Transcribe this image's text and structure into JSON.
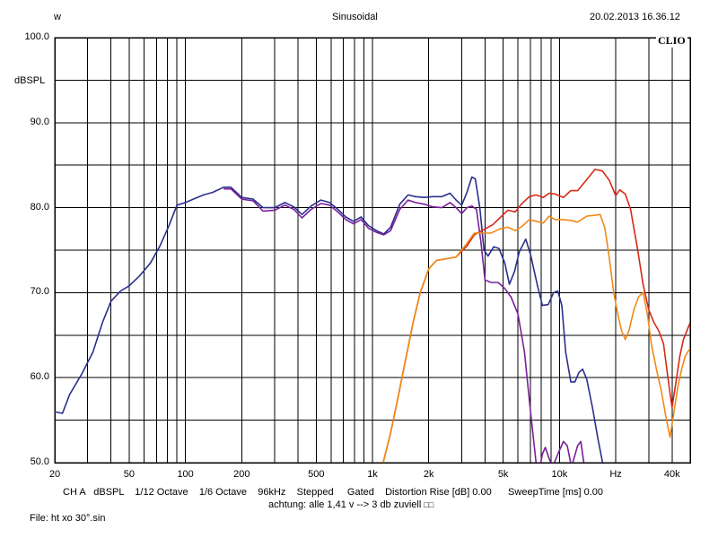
{
  "header": {
    "left": "w",
    "center": "Sinusoidal",
    "right": "20.02.2013 16.36.12"
  },
  "brand": "CLIO",
  "footer": {
    "line1": "CH A   dBSPL    1/12 Octave    1/6 Octave    96kHz    Stepped     Gated    Distortion Rise [dB] 0.00      SweepTime [ms] 0.00",
    "line2": "achtung:  alle 1,41 v --> 3 db zuviell",
    "file": "File: ht xo 30°.sin"
  },
  "chart_data": {
    "type": "line",
    "title": "Sinusoidal",
    "xlabel": "Hz",
    "ylabel": "dBSPL",
    "xscale": "log",
    "xlim": [
      20,
      50000
    ],
    "ylim": [
      50,
      100
    ],
    "grid": true,
    "xticks": [
      {
        "v": 20,
        "label": "20"
      },
      {
        "v": 50,
        "label": "50"
      },
      {
        "v": 100,
        "label": "100"
      },
      {
        "v": 200,
        "label": "200"
      },
      {
        "v": 500,
        "label": "500"
      },
      {
        "v": 1000,
        "label": "1k"
      },
      {
        "v": 2000,
        "label": "2k"
      },
      {
        "v": 5000,
        "label": "5k"
      },
      {
        "v": 10000,
        "label": "10k"
      },
      {
        "v": 20000,
        "label": "Hz"
      },
      {
        "v": 40000,
        "label": "40k"
      }
    ],
    "yticks": [
      {
        "v": 100,
        "label": "100.0"
      },
      {
        "v": 90,
        "label": "90.0"
      },
      {
        "v": 80,
        "label": "80.0"
      },
      {
        "v": 70,
        "label": "70.0"
      },
      {
        "v": 60,
        "label": "60.0"
      },
      {
        "v": 50,
        "label": "50.0"
      }
    ],
    "series": [
      {
        "color": "#2b2f8c",
        "points": [
          [
            20,
            56
          ],
          [
            22,
            55.8
          ],
          [
            24,
            58
          ],
          [
            28,
            60.5
          ],
          [
            32,
            63
          ],
          [
            36,
            66.5
          ],
          [
            40,
            69
          ],
          [
            45,
            70.2
          ],
          [
            50,
            70.8
          ],
          [
            57,
            72
          ],
          [
            65,
            73.5
          ],
          [
            73,
            75.5
          ],
          [
            82,
            78
          ],
          [
            90,
            80.3
          ],
          [
            100,
            80.6
          ],
          [
            110,
            81
          ],
          [
            125,
            81.5
          ],
          [
            140,
            81.8
          ],
          [
            160,
            82.4
          ],
          [
            175,
            82.4
          ],
          [
            200,
            81.2
          ],
          [
            230,
            81
          ],
          [
            260,
            80
          ],
          [
            300,
            80
          ],
          [
            340,
            80.6
          ],
          [
            380,
            80.1
          ],
          [
            420,
            79.2
          ],
          [
            470,
            80.2
          ],
          [
            530,
            80.9
          ],
          [
            590,
            80.6
          ],
          [
            660,
            79.7
          ],
          [
            720,
            78.9
          ],
          [
            790,
            78.4
          ],
          [
            870,
            78.9
          ],
          [
            950,
            77.9
          ],
          [
            1050,
            77.3
          ],
          [
            1150,
            76.9
          ],
          [
            1250,
            77.7
          ],
          [
            1400,
            80.4
          ],
          [
            1550,
            81.5
          ],
          [
            1700,
            81.3
          ],
          [
            1900,
            81.2
          ],
          [
            2100,
            81.3
          ],
          [
            2350,
            81.3
          ],
          [
            2600,
            81.7
          ],
          [
            2800,
            80.9
          ],
          [
            3000,
            80.3
          ],
          [
            3200,
            81.8
          ],
          [
            3400,
            83.6
          ],
          [
            3550,
            83.4
          ],
          [
            3750,
            80
          ],
          [
            3950,
            75
          ],
          [
            4150,
            74.3
          ],
          [
            4450,
            75.4
          ],
          [
            4750,
            75.2
          ],
          [
            5100,
            73.5
          ],
          [
            5400,
            71
          ],
          [
            5750,
            72.5
          ],
          [
            6100,
            74.8
          ],
          [
            6600,
            76.3
          ],
          [
            7000,
            74.5
          ],
          [
            7600,
            71
          ],
          [
            8100,
            68.5
          ],
          [
            8700,
            68.6
          ],
          [
            9300,
            70
          ],
          [
            9800,
            70.2
          ],
          [
            10300,
            68.5
          ],
          [
            10800,
            63
          ],
          [
            11500,
            59.5
          ],
          [
            12100,
            59.5
          ],
          [
            12700,
            60.6
          ],
          [
            13300,
            61
          ],
          [
            14000,
            59.8
          ],
          [
            15000,
            56.5
          ],
          [
            16000,
            53
          ],
          [
            17000,
            50
          ]
        ]
      },
      {
        "color": "#7a1f9a",
        "points": [
          [
            160,
            82.2
          ],
          [
            175,
            82.2
          ],
          [
            200,
            81
          ],
          [
            230,
            80.8
          ],
          [
            260,
            79.6
          ],
          [
            300,
            79.7
          ],
          [
            340,
            80.3
          ],
          [
            380,
            79.8
          ],
          [
            420,
            78.8
          ],
          [
            470,
            79.8
          ],
          [
            530,
            80.5
          ],
          [
            590,
            80.3
          ],
          [
            660,
            79.4
          ],
          [
            720,
            78.6
          ],
          [
            790,
            78.1
          ],
          [
            870,
            78.6
          ],
          [
            950,
            77.6
          ],
          [
            1050,
            77.1
          ],
          [
            1150,
            76.8
          ],
          [
            1250,
            77.3
          ],
          [
            1400,
            79.8
          ],
          [
            1550,
            80.9
          ],
          [
            1700,
            80.6
          ],
          [
            1900,
            80.4
          ],
          [
            2100,
            80.1
          ],
          [
            2350,
            80
          ],
          [
            2600,
            80.6
          ],
          [
            2800,
            80
          ],
          [
            3000,
            79.3
          ],
          [
            3200,
            80
          ],
          [
            3400,
            80.2
          ],
          [
            3600,
            79.8
          ],
          [
            3800,
            76
          ],
          [
            4000,
            71.5
          ],
          [
            4300,
            71.2
          ],
          [
            4700,
            71.2
          ],
          [
            5100,
            70.5
          ],
          [
            5500,
            69.5
          ],
          [
            6000,
            67.5
          ],
          [
            6500,
            63
          ],
          [
            7000,
            56
          ],
          [
            7500,
            50
          ],
          [
            7800,
            49
          ],
          [
            8100,
            51
          ],
          [
            8400,
            51.8
          ],
          [
            8800,
            50.5
          ],
          [
            9200,
            49.5
          ],
          [
            9800,
            51
          ],
          [
            10500,
            52.5
          ],
          [
            11000,
            52
          ],
          [
            11600,
            49.5
          ],
          [
            12500,
            52
          ],
          [
            13000,
            52.5
          ],
          [
            13500,
            50
          ]
        ]
      },
      {
        "color": "#d62a16",
        "points": [
          [
            1140,
            50
          ],
          [
            1250,
            53.5
          ],
          [
            1350,
            57
          ],
          [
            1500,
            62
          ],
          [
            1650,
            66.5
          ],
          [
            1800,
            70
          ],
          [
            2000,
            72.8
          ],
          [
            2200,
            73.8
          ],
          [
            2500,
            74
          ],
          [
            2800,
            74.2
          ],
          [
            3200,
            75.5
          ],
          [
            3500,
            76.8
          ],
          [
            4000,
            77.5
          ],
          [
            4400,
            78
          ],
          [
            4800,
            78.8
          ],
          [
            5300,
            79.7
          ],
          [
            5800,
            79.5
          ],
          [
            6300,
            80.5
          ],
          [
            6900,
            81.3
          ],
          [
            7500,
            81.5
          ],
          [
            8200,
            81.2
          ],
          [
            8800,
            81.7
          ],
          [
            9500,
            81.6
          ],
          [
            10500,
            81.2
          ],
          [
            11500,
            82
          ],
          [
            12500,
            82
          ],
          [
            14000,
            83.3
          ],
          [
            15500,
            84.5
          ],
          [
            17000,
            84.3
          ],
          [
            18500,
            83.2
          ],
          [
            20000,
            81.4
          ],
          [
            21000,
            82.1
          ],
          [
            22500,
            81.6
          ],
          [
            24000,
            79.8
          ],
          [
            26000,
            75.5
          ],
          [
            28000,
            71
          ],
          [
            30000,
            68
          ],
          [
            32000,
            66.5
          ],
          [
            34000,
            65.5
          ],
          [
            36000,
            64
          ],
          [
            38000,
            60
          ],
          [
            40000,
            56.5
          ],
          [
            42000,
            59.5
          ],
          [
            44000,
            62.5
          ],
          [
            46000,
            64.5
          ],
          [
            48000,
            65.5
          ],
          [
            50000,
            66.5
          ]
        ]
      },
      {
        "color": "#f08a16",
        "points": [
          [
            1140,
            50
          ],
          [
            1250,
            53.5
          ],
          [
            1350,
            57
          ],
          [
            1500,
            62
          ],
          [
            1650,
            66.5
          ],
          [
            1800,
            70
          ],
          [
            2000,
            72.8
          ],
          [
            2200,
            73.8
          ],
          [
            2500,
            74
          ],
          [
            2800,
            74.2
          ],
          [
            3200,
            75.8
          ],
          [
            3500,
            77
          ],
          [
            3900,
            77
          ],
          [
            4300,
            77
          ],
          [
            4800,
            77.5
          ],
          [
            5300,
            77.7
          ],
          [
            5800,
            77.3
          ],
          [
            6300,
            77.8
          ],
          [
            6900,
            78.6
          ],
          [
            7500,
            78.4
          ],
          [
            8200,
            78.2
          ],
          [
            8800,
            79
          ],
          [
            9500,
            78.6
          ],
          [
            10500,
            78.6
          ],
          [
            11500,
            78.5
          ],
          [
            12500,
            78.3
          ],
          [
            14000,
            79
          ],
          [
            15500,
            79.1
          ],
          [
            16500,
            79.2
          ],
          [
            17500,
            77.6
          ],
          [
            18500,
            74
          ],
          [
            19500,
            70
          ],
          [
            20500,
            67.5
          ],
          [
            21500,
            65.5
          ],
          [
            22500,
            64.5
          ],
          [
            23500,
            65.5
          ],
          [
            25000,
            68
          ],
          [
            26500,
            69.5
          ],
          [
            28000,
            70
          ],
          [
            29500,
            67.5
          ],
          [
            31000,
            64
          ],
          [
            33000,
            61
          ],
          [
            35000,
            58.5
          ],
          [
            37000,
            55.5
          ],
          [
            39000,
            53
          ],
          [
            41000,
            56
          ],
          [
            43000,
            59
          ],
          [
            45000,
            61
          ],
          [
            47000,
            62.5
          ],
          [
            50000,
            63.5
          ]
        ]
      }
    ]
  }
}
